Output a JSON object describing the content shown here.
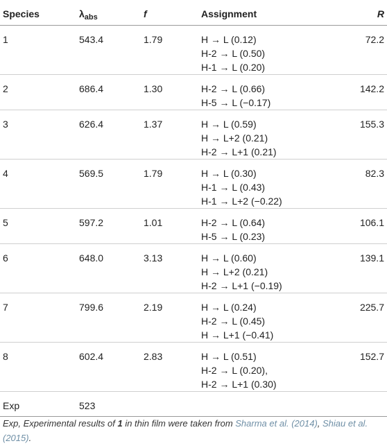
{
  "table": {
    "headers": {
      "species": "Species",
      "lambda_symbol": "λ",
      "lambda_sub": "abs",
      "f": "f",
      "assignment": "Assignment",
      "r": "R"
    },
    "rows": [
      {
        "species": "1",
        "lambda": "543.4",
        "f": "1.79",
        "assignment": [
          "H →  L (0.12)",
          "H-2 →  L (0.50)",
          "H-1 →  L (0.20)"
        ],
        "r": "72.2"
      },
      {
        "species": "2",
        "lambda": "686.4",
        "f": "1.30",
        "assignment": [
          "H-2 →  L (0.66)",
          "H-5 →  L (−0.17)"
        ],
        "r": "142.2"
      },
      {
        "species": "3",
        "lambda": "626.4",
        "f": "1.37",
        "assignment": [
          "H →  L (0.59)",
          "H →  L+2 (0.21)",
          "H-2 →  L+1 (0.21)"
        ],
        "r": "155.3"
      },
      {
        "species": "4",
        "lambda": "569.5",
        "f": "1.79",
        "assignment": [
          "H →  L (0.30)",
          "H-1 →  L (0.43)",
          "H-1 →  L+2 (−0.22)"
        ],
        "r": "82.3"
      },
      {
        "species": "5",
        "lambda": "597.2",
        "f": "1.01",
        "assignment": [
          "H-2 →  L (0.64)",
          "H-5 →  L (0.23)"
        ],
        "r": "106.1"
      },
      {
        "species": "6",
        "lambda": "648.0",
        "f": "3.13",
        "assignment": [
          "H →  L (0.60)",
          "H →  L+2 (0.21)",
          "H-2 →  L+1 (−0.19)"
        ],
        "r": "139.1"
      },
      {
        "species": "7",
        "lambda": "799.6",
        "f": "2.19",
        "assignment": [
          "H →  L (0.24)",
          "H-2 →  L (0.45)",
          "H →  L+1 (−0.41)"
        ],
        "r": "225.7"
      },
      {
        "species": "8",
        "lambda": "602.4",
        "f": "2.83",
        "assignment": [
          "H →  L (0.51)",
          "H-2 →  L (0.20),",
          "H-2 →  L+1 (0.30)"
        ],
        "r": "152.7"
      },
      {
        "species": "Exp",
        "lambda": "523",
        "f": "",
        "assignment": [],
        "r": ""
      }
    ]
  },
  "footnote": {
    "prefix": "Exp, Experimental results of ",
    "bold": "1",
    "middle": " in thin film were taken from ",
    "ref1": "Sharma et al. (2014)",
    "sep": ", ",
    "ref2": "Shiau et al. (2015)",
    "suffix": "."
  }
}
